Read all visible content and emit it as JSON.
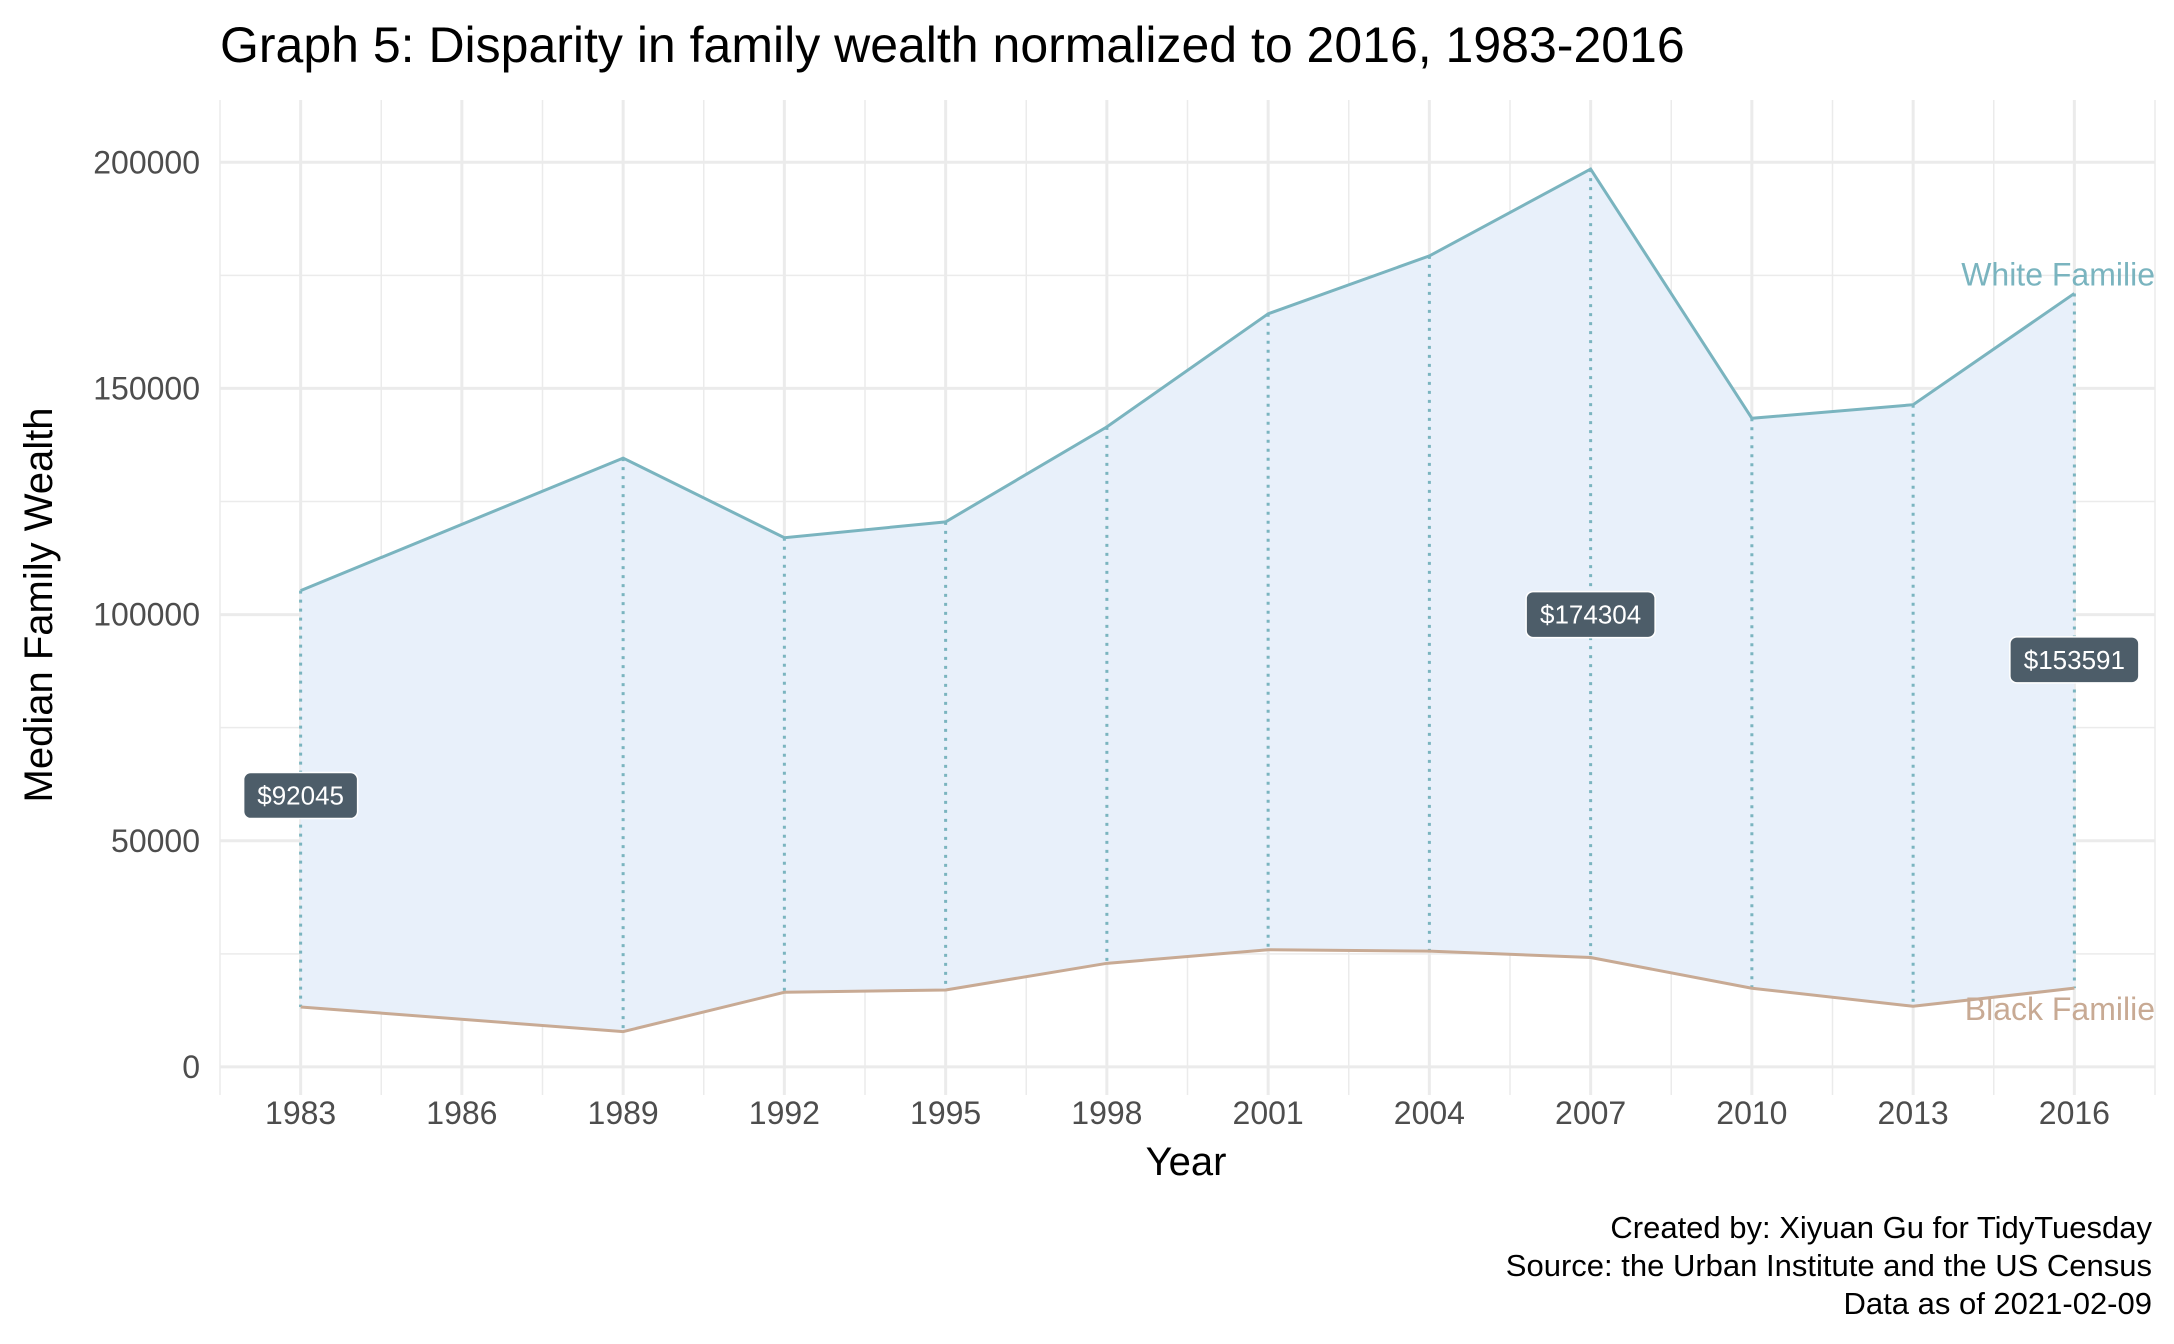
{
  "chart_data": {
    "type": "area",
    "title": "Graph 5: Disparity in family wealth normalized to 2016, 1983-2016",
    "xlabel": "Year",
    "ylabel": "Median Family Wealth",
    "x_ticks": [
      "1983",
      "1986",
      "1989",
      "1992",
      "1995",
      "1998",
      "2001",
      "2004",
      "2007",
      "2010",
      "2013",
      "2016"
    ],
    "y_ticks": [
      "0",
      "50000",
      "100000",
      "150000",
      "200000"
    ],
    "xlim": [
      1981.5,
      2017.5
    ],
    "ylim": [
      -4000,
      212000
    ],
    "grid": true,
    "legend": "none",
    "years": [
      1983,
      1989,
      1992,
      1995,
      1998,
      2001,
      2004,
      2007,
      2010,
      2013,
      2016
    ],
    "series": [
      {
        "name": "White Families",
        "label": "White Familie",
        "color": "#7ab4bf",
        "values": [
          105300,
          134600,
          117000,
          120500,
          141500,
          166500,
          179300,
          198500,
          143400,
          146400,
          171000
        ]
      },
      {
        "name": "Black Families",
        "label": "Black Familie",
        "color": "#c8aa94",
        "values": [
          13255,
          7800,
          16500,
          17000,
          22900,
          25900,
          25600,
          24196,
          17400,
          13400,
          17409
        ]
      }
    ],
    "fill_color": "#e8f0fa",
    "gap_annotations": [
      {
        "year": 1983,
        "text": "$92045",
        "y": 60000
      },
      {
        "year": 2007,
        "text": "$174304",
        "y": 100000
      },
      {
        "year": 2016,
        "text": "$153591",
        "y": 90000
      }
    ],
    "caption": [
      "Created by: Xiyuan Gu for TidyTuesday",
      "Source: the Urban Institute and the US Census",
      "Data as of 2021-02-09"
    ]
  }
}
